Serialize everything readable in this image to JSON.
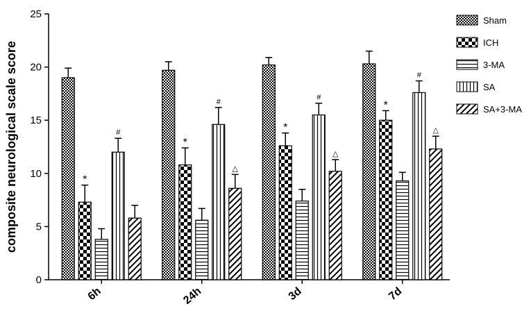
{
  "chart_data": {
    "type": "bar",
    "categories": [
      "6h",
      "24h",
      "3d",
      "7d"
    ],
    "ylabel": "composite neurological scale score",
    "xlabel": "",
    "ylim": [
      0,
      25
    ],
    "yticks": [
      0,
      5,
      10,
      15,
      20,
      25
    ],
    "grid": false,
    "legend_position": "right",
    "series": [
      {
        "name": "Sham",
        "pattern": "checker-fine",
        "values": [
          19.0,
          19.7,
          20.2,
          20.3
        ],
        "errors": [
          0.9,
          0.8,
          0.7,
          1.2
        ],
        "marks": [
          "",
          "",
          "",
          ""
        ]
      },
      {
        "name": "ICH",
        "pattern": "checker-coarse",
        "values": [
          7.3,
          10.8,
          12.6,
          15.0
        ],
        "errors": [
          1.6,
          1.6,
          1.2,
          0.9
        ],
        "marks": [
          "*",
          "*",
          "*",
          "*"
        ]
      },
      {
        "name": "3-MA",
        "pattern": "horizontal",
        "values": [
          3.8,
          5.6,
          7.4,
          9.3
        ],
        "errors": [
          1.0,
          1.1,
          1.1,
          0.8
        ],
        "marks": [
          "",
          "",
          "",
          ""
        ]
      },
      {
        "name": "SA",
        "pattern": "vertical",
        "values": [
          12.0,
          14.6,
          15.5,
          17.6
        ],
        "errors": [
          1.3,
          1.6,
          1.1,
          1.1
        ],
        "marks": [
          "#",
          "#",
          "#",
          "#"
        ]
      },
      {
        "name": "SA+3-MA",
        "pattern": "diagonal",
        "values": [
          5.8,
          8.6,
          10.2,
          12.3
        ],
        "errors": [
          1.2,
          1.3,
          1.1,
          1.2
        ],
        "marks": [
          "",
          "△",
          "△",
          "△"
        ]
      }
    ]
  }
}
